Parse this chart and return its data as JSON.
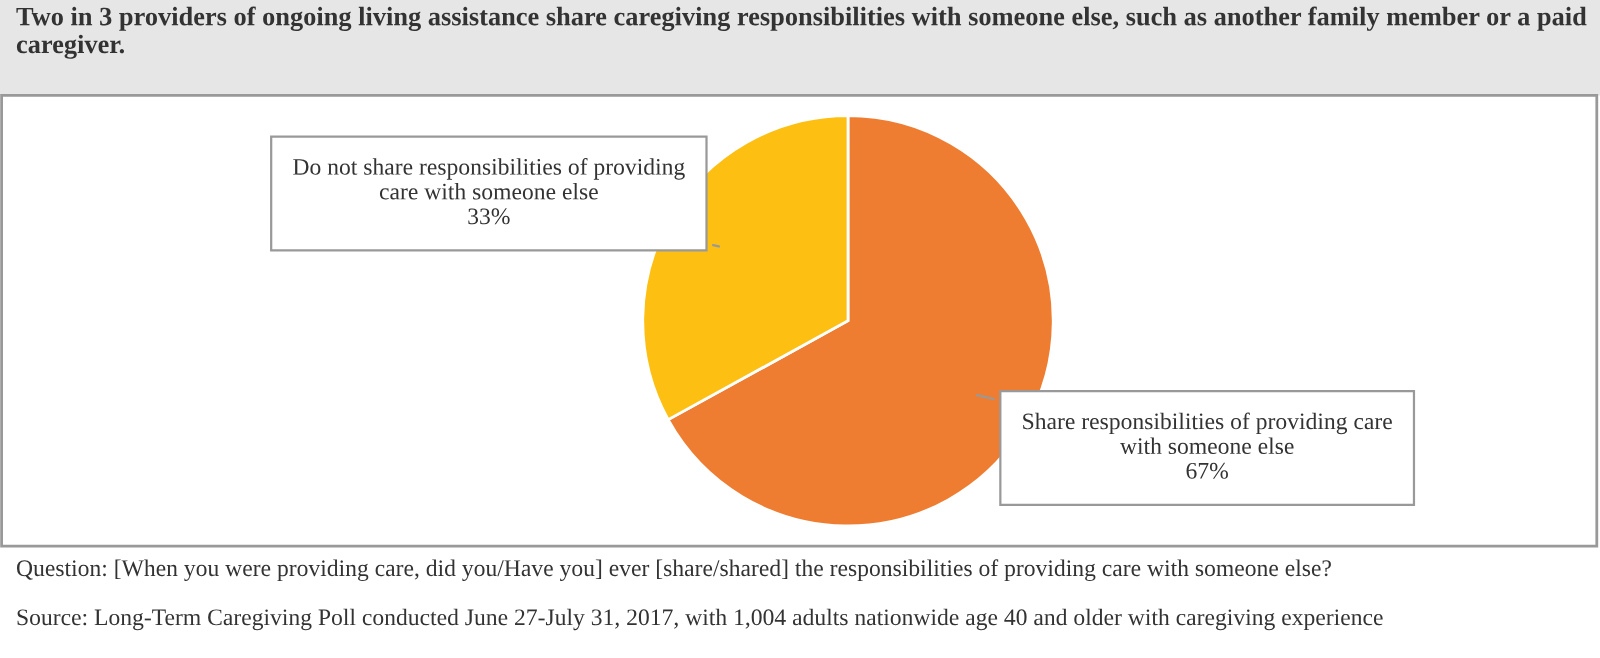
{
  "chart_data": {
    "type": "pie",
    "title": "Two in 3 providers of ongoing living assistance share caregiving responsibilities with someone else, such as another family member or a paid caregiver.",
    "categories": [
      "Share responsibilities of providing care with someone else",
      "Do not share responsibilities of providing care with someone else"
    ],
    "values": [
      67,
      33
    ],
    "colors": [
      "#ee7d31",
      "#fdbf12"
    ],
    "value_labels": [
      "67%",
      "33%"
    ],
    "annotations": [
      "Question: [When you were providing care, did you/Have you] ever [share/shared] the responsibilities of providing care with someone else?",
      "Source: Long-Term Caregiving Poll conducted June 27-July 31, 2017, with 1,004 adults nationwide age 40 and older with caregiving experience"
    ]
  }
}
